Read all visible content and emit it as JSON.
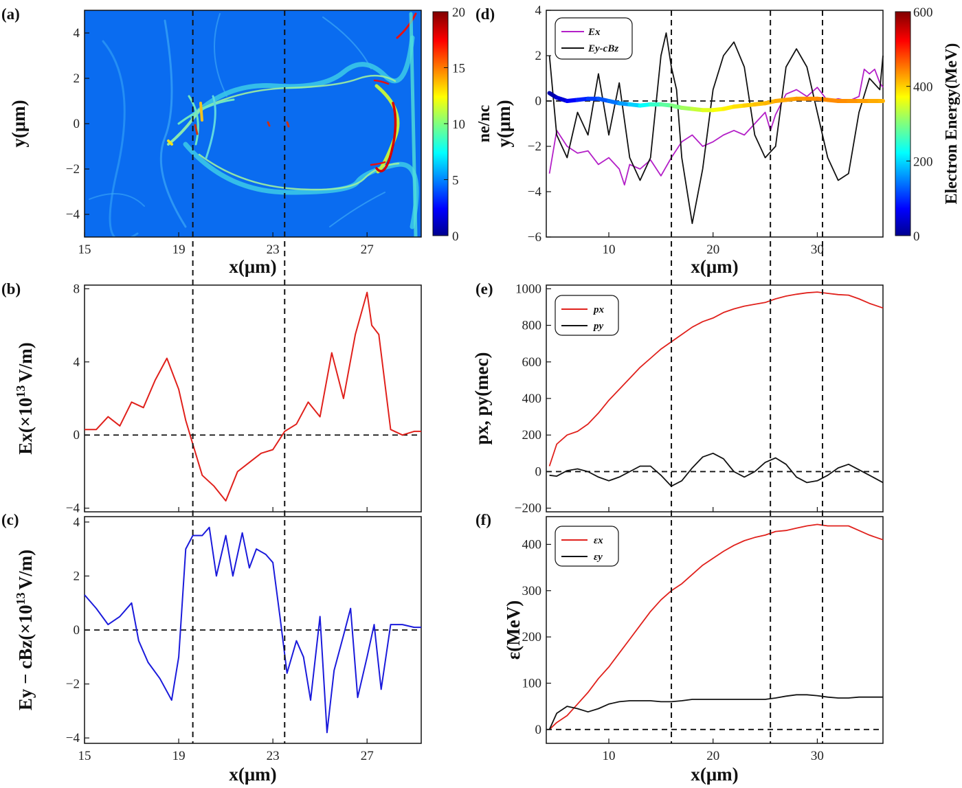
{
  "chart_data": [
    {
      "panel": "(a)",
      "type": "heatmap",
      "xlabel": "x(μm)",
      "ylabel": "y(μm)",
      "xlim": [
        15,
        29.3
      ],
      "ylim": [
        -5,
        5
      ],
      "xticks": [
        "15",
        "19",
        "23",
        "27"
      ],
      "yticks": [
        "4",
        "2",
        "0",
        "−2",
        "−4"
      ],
      "colorbar": {
        "label": "ne/nc",
        "range": [
          0,
          20
        ],
        "ticks": [
          "20",
          "15",
          "10",
          "5",
          "0"
        ]
      }
    },
    {
      "panel": "(b)",
      "type": "line",
      "xlabel": "",
      "ylabel": "Ex(×10^13 V/m)",
      "xlim": [
        15,
        29.3
      ],
      "ylim": [
        -4.2,
        8.2
      ],
      "yticks": [
        "8",
        "4",
        "0",
        "−4"
      ],
      "line_color": "#e0201b",
      "x": [
        15,
        15.5,
        16,
        16.5,
        17,
        17.5,
        18,
        18.5,
        19,
        19.3,
        19.6,
        20,
        20.5,
        21,
        21.5,
        22,
        22.5,
        23,
        23.5,
        24,
        24.5,
        25,
        25.5,
        26,
        26.5,
        27,
        27.2,
        27.5,
        28,
        28.5,
        29,
        29.3
      ],
      "y": [
        0.3,
        0.3,
        1.0,
        0.5,
        1.8,
        1.5,
        3.0,
        4.2,
        2.5,
        0.8,
        -0.5,
        -2.2,
        -2.8,
        -3.6,
        -2.0,
        -1.5,
        -1.0,
        -0.8,
        0.2,
        0.6,
        1.8,
        1.0,
        4.5,
        2.0,
        5.5,
        7.8,
        6.0,
        5.5,
        0.3,
        0.0,
        0.2,
        0.2
      ]
    },
    {
      "panel": "(c)",
      "type": "line",
      "xlabel": "x(μm)",
      "ylabel": "Ey − cBz(×10^13 V/m)",
      "xlim": [
        15,
        29.3
      ],
      "ylim": [
        -4.2,
        4.2
      ],
      "xticks": [
        "15",
        "19",
        "23",
        "27"
      ],
      "yticks": [
        "4",
        "2",
        "0",
        "−2",
        "−4"
      ],
      "line_color": "#1a1adb",
      "x": [
        15,
        15.5,
        16,
        16.5,
        17,
        17.3,
        17.7,
        18.2,
        18.7,
        19,
        19.3,
        19.6,
        20,
        20.3,
        20.6,
        21,
        21.3,
        21.7,
        22,
        22.3,
        22.7,
        23,
        23.3,
        23.6,
        24,
        24.3,
        24.6,
        25,
        25.3,
        25.6,
        26,
        26.3,
        26.6,
        27,
        27.3,
        27.6,
        28,
        28.5,
        29,
        29.3
      ],
      "y": [
        1.3,
        0.8,
        0.2,
        0.5,
        1.0,
        -0.4,
        -1.2,
        -1.8,
        -2.6,
        -1.0,
        3.0,
        3.5,
        3.5,
        3.8,
        2.0,
        3.5,
        2.0,
        3.6,
        2.3,
        3.0,
        2.8,
        2.5,
        0.5,
        -1.6,
        -0.4,
        -1.0,
        -2.6,
        0.5,
        -3.8,
        -1.5,
        -0.2,
        0.8,
        -2.5,
        -1.0,
        0.2,
        -2.2,
        0.2,
        0.2,
        0.1,
        0.1
      ]
    },
    {
      "panel": "(d)",
      "type": "line",
      "xlabel": "x(μm)",
      "ylabel": "y(μm)",
      "xlim": [
        4,
        36.3
      ],
      "ylim": [
        -6,
        4
      ],
      "xticks": [
        "10",
        "20",
        "30"
      ],
      "yticks": [
        "4",
        "2",
        "0",
        "−2",
        "−4",
        "−6"
      ],
      "colorbar": {
        "label": "Electron Energy(MeV)",
        "range": [
          0,
          600
        ],
        "ticks": [
          "600",
          "400",
          "200",
          "0"
        ]
      },
      "series": [
        {
          "name": "Ex",
          "color": "#b31fc7",
          "x": [
            4.3,
            5,
            6,
            7,
            8,
            9,
            10,
            11,
            11.5,
            12,
            13,
            14,
            15,
            16,
            17,
            18,
            19,
            20,
            21,
            22,
            23,
            24,
            25,
            25.5,
            26,
            27,
            28,
            29,
            30,
            31,
            32,
            33,
            34,
            34.5,
            35,
            35.5,
            36,
            36.3
          ],
          "y": [
            -3.2,
            -1.3,
            -2.0,
            -2.3,
            -2.2,
            -2.8,
            -2.5,
            -3.0,
            -3.7,
            -2.8,
            -3.0,
            -2.6,
            -3.3,
            -2.5,
            -1.8,
            -1.5,
            -2.0,
            -1.8,
            -1.5,
            -1.3,
            -1.5,
            -1.0,
            -0.5,
            -1.3,
            -0.6,
            0.3,
            0.5,
            0.2,
            0.6,
            0.0,
            0.1,
            0.0,
            0.2,
            1.4,
            1.2,
            1.4,
            0.8,
            0.6
          ]
        },
        {
          "name": "Ey-cBz",
          "color": "#111111",
          "x": [
            4.3,
            5,
            6,
            7,
            8,
            9,
            10,
            11,
            12,
            13,
            14,
            15,
            15.5,
            16,
            16.5,
            17,
            18,
            19,
            20,
            21,
            22,
            23,
            24,
            25,
            26,
            27,
            28,
            29,
            30,
            31,
            32,
            33,
            34,
            35,
            36,
            36.3
          ],
          "y": [
            2.0,
            -1.5,
            -2.5,
            -0.5,
            -1.5,
            1.2,
            -1.5,
            0.8,
            -2.5,
            -3.5,
            -2.5,
            2.0,
            3.0,
            1.5,
            0.5,
            -2.5,
            -5.4,
            -3.0,
            0.5,
            2.0,
            2.6,
            1.5,
            -1.5,
            -2.5,
            -2.0,
            1.5,
            2.3,
            1.5,
            -0.5,
            -2.5,
            -3.5,
            -3.2,
            -0.5,
            1.0,
            0.5,
            2.0
          ]
        }
      ],
      "trajectory": {
        "x": [
          4.3,
          5,
          6,
          7,
          8,
          9,
          10,
          11,
          12,
          13,
          14,
          15,
          16,
          17,
          18,
          19,
          20,
          21,
          22,
          23,
          24,
          25,
          26,
          27,
          28,
          29,
          30,
          31,
          32,
          33,
          34,
          35,
          36,
          36.3
        ],
        "y": [
          0.35,
          0.15,
          0.0,
          0.05,
          0.1,
          0.1,
          0.0,
          -0.1,
          -0.15,
          -0.2,
          -0.15,
          -0.15,
          -0.2,
          -0.3,
          -0.35,
          -0.4,
          -0.4,
          -0.35,
          -0.25,
          -0.2,
          -0.15,
          -0.1,
          0.0,
          0.05,
          0.1,
          0.1,
          0.1,
          0.05,
          0.0,
          0.0,
          0.0,
          0.0,
          0.0,
          0.0
        ],
        "energy_MeV": [
          5,
          30,
          60,
          80,
          100,
          115,
          130,
          150,
          180,
          210,
          240,
          270,
          290,
          310,
          330,
          350,
          360,
          375,
          385,
          395,
          405,
          412,
          418,
          425,
          430,
          435,
          440,
          440,
          440,
          438,
          432,
          425,
          418,
          415
        ]
      }
    },
    {
      "panel": "(e)",
      "type": "line",
      "xlabel": "",
      "ylabel": "px, py(mec)",
      "xlim": [
        4,
        36.3
      ],
      "ylim": [
        -220,
        1020
      ],
      "yticks": [
        "1000",
        "800",
        "600",
        "400",
        "200",
        "0",
        "−200"
      ],
      "series": [
        {
          "name": "px",
          "color": "#e0201b",
          "x": [
            4.3,
            5,
            6,
            7,
            8,
            9,
            10,
            11,
            12,
            13,
            14,
            15,
            16,
            17,
            18,
            19,
            20,
            21,
            22,
            23,
            24,
            25,
            26,
            27,
            28,
            29,
            30,
            31,
            32,
            33,
            34,
            35,
            36.3
          ],
          "y": [
            30,
            150,
            200,
            220,
            260,
            320,
            390,
            450,
            510,
            570,
            620,
            670,
            710,
            750,
            790,
            820,
            840,
            870,
            890,
            905,
            915,
            925,
            945,
            960,
            970,
            978,
            982,
            975,
            968,
            965,
            945,
            920,
            895
          ]
        },
        {
          "name": "py",
          "color": "#111111",
          "x": [
            4.3,
            5,
            6,
            7,
            8,
            9,
            10,
            11,
            12,
            13,
            14,
            15,
            16,
            17,
            18,
            19,
            20,
            21,
            22,
            23,
            24,
            25,
            26,
            27,
            28,
            29,
            30,
            31,
            32,
            33,
            34,
            35,
            36.3
          ],
          "y": [
            -20,
            -25,
            5,
            15,
            0,
            -30,
            -50,
            -30,
            0,
            30,
            30,
            -20,
            -80,
            -50,
            20,
            80,
            100,
            70,
            0,
            -30,
            0,
            50,
            75,
            40,
            -30,
            -60,
            -50,
            -20,
            20,
            40,
            10,
            -20,
            -60
          ]
        }
      ]
    },
    {
      "panel": "(f)",
      "type": "line",
      "xlabel": "x(μm)",
      "ylabel": "ε(MeV)",
      "xlim": [
        4,
        36.3
      ],
      "ylim": [
        -30,
        460
      ],
      "xticks": [
        "10",
        "20",
        "30"
      ],
      "yticks": [
        "400",
        "300",
        "200",
        "100",
        "0"
      ],
      "series": [
        {
          "name": "εx",
          "color": "#e0201b",
          "x": [
            4.3,
            5,
            6,
            7,
            8,
            9,
            10,
            11,
            12,
            13,
            14,
            15,
            16,
            17,
            18,
            19,
            20,
            21,
            22,
            23,
            24,
            25,
            26,
            27,
            28,
            29,
            30,
            31,
            32,
            33,
            34,
            35,
            36.3
          ],
          "y": [
            0,
            15,
            30,
            55,
            80,
            110,
            135,
            165,
            195,
            225,
            255,
            280,
            300,
            315,
            335,
            355,
            370,
            385,
            398,
            408,
            415,
            420,
            428,
            430,
            435,
            440,
            443,
            440,
            440,
            440,
            430,
            420,
            410
          ]
        },
        {
          "name": "εy",
          "color": "#111111",
          "x": [
            4.3,
            5,
            6,
            7,
            8,
            9,
            10,
            11,
            12,
            13,
            14,
            15,
            16,
            17,
            18,
            19,
            20,
            21,
            22,
            23,
            24,
            25,
            26,
            27,
            28,
            29,
            30,
            31,
            32,
            33,
            34,
            35,
            36.3
          ],
          "y": [
            0,
            35,
            50,
            45,
            38,
            45,
            55,
            60,
            62,
            62,
            62,
            60,
            60,
            62,
            65,
            65,
            65,
            65,
            65,
            65,
            65,
            65,
            68,
            72,
            75,
            75,
            73,
            70,
            68,
            68,
            70,
            70,
            70
          ]
        }
      ]
    }
  ],
  "labels": {
    "a": "(a)",
    "b": "(b)",
    "c": "(c)",
    "d": "(d)",
    "e": "(e)",
    "f": "(f)",
    "ylab_a": "y(μm)",
    "xlab_a": "x(μm)",
    "cb_a": "ne/nc",
    "ylab_b": "Ex(×10",
    "ylab_b_exp": "13",
    "ylab_b_tail": "V/m)",
    "ylab_c": "Ey − cBz(×10",
    "ylab_c_exp": "13",
    "ylab_c_tail": "V/m)",
    "xlab_c": "x(μm)",
    "ylab_d": "y(μm)",
    "xlab_d": "x(μm)",
    "cb_d": "Electron Energy(MeV)",
    "ylab_e": "px, py(mec)",
    "ylab_f": "ε(MeV)",
    "xlab_f": "x(μm)",
    "leg_d": [
      "Ex",
      "Ey-cBz"
    ],
    "leg_e": [
      "px",
      "py"
    ],
    "leg_f": [
      "εx",
      "εy"
    ]
  }
}
